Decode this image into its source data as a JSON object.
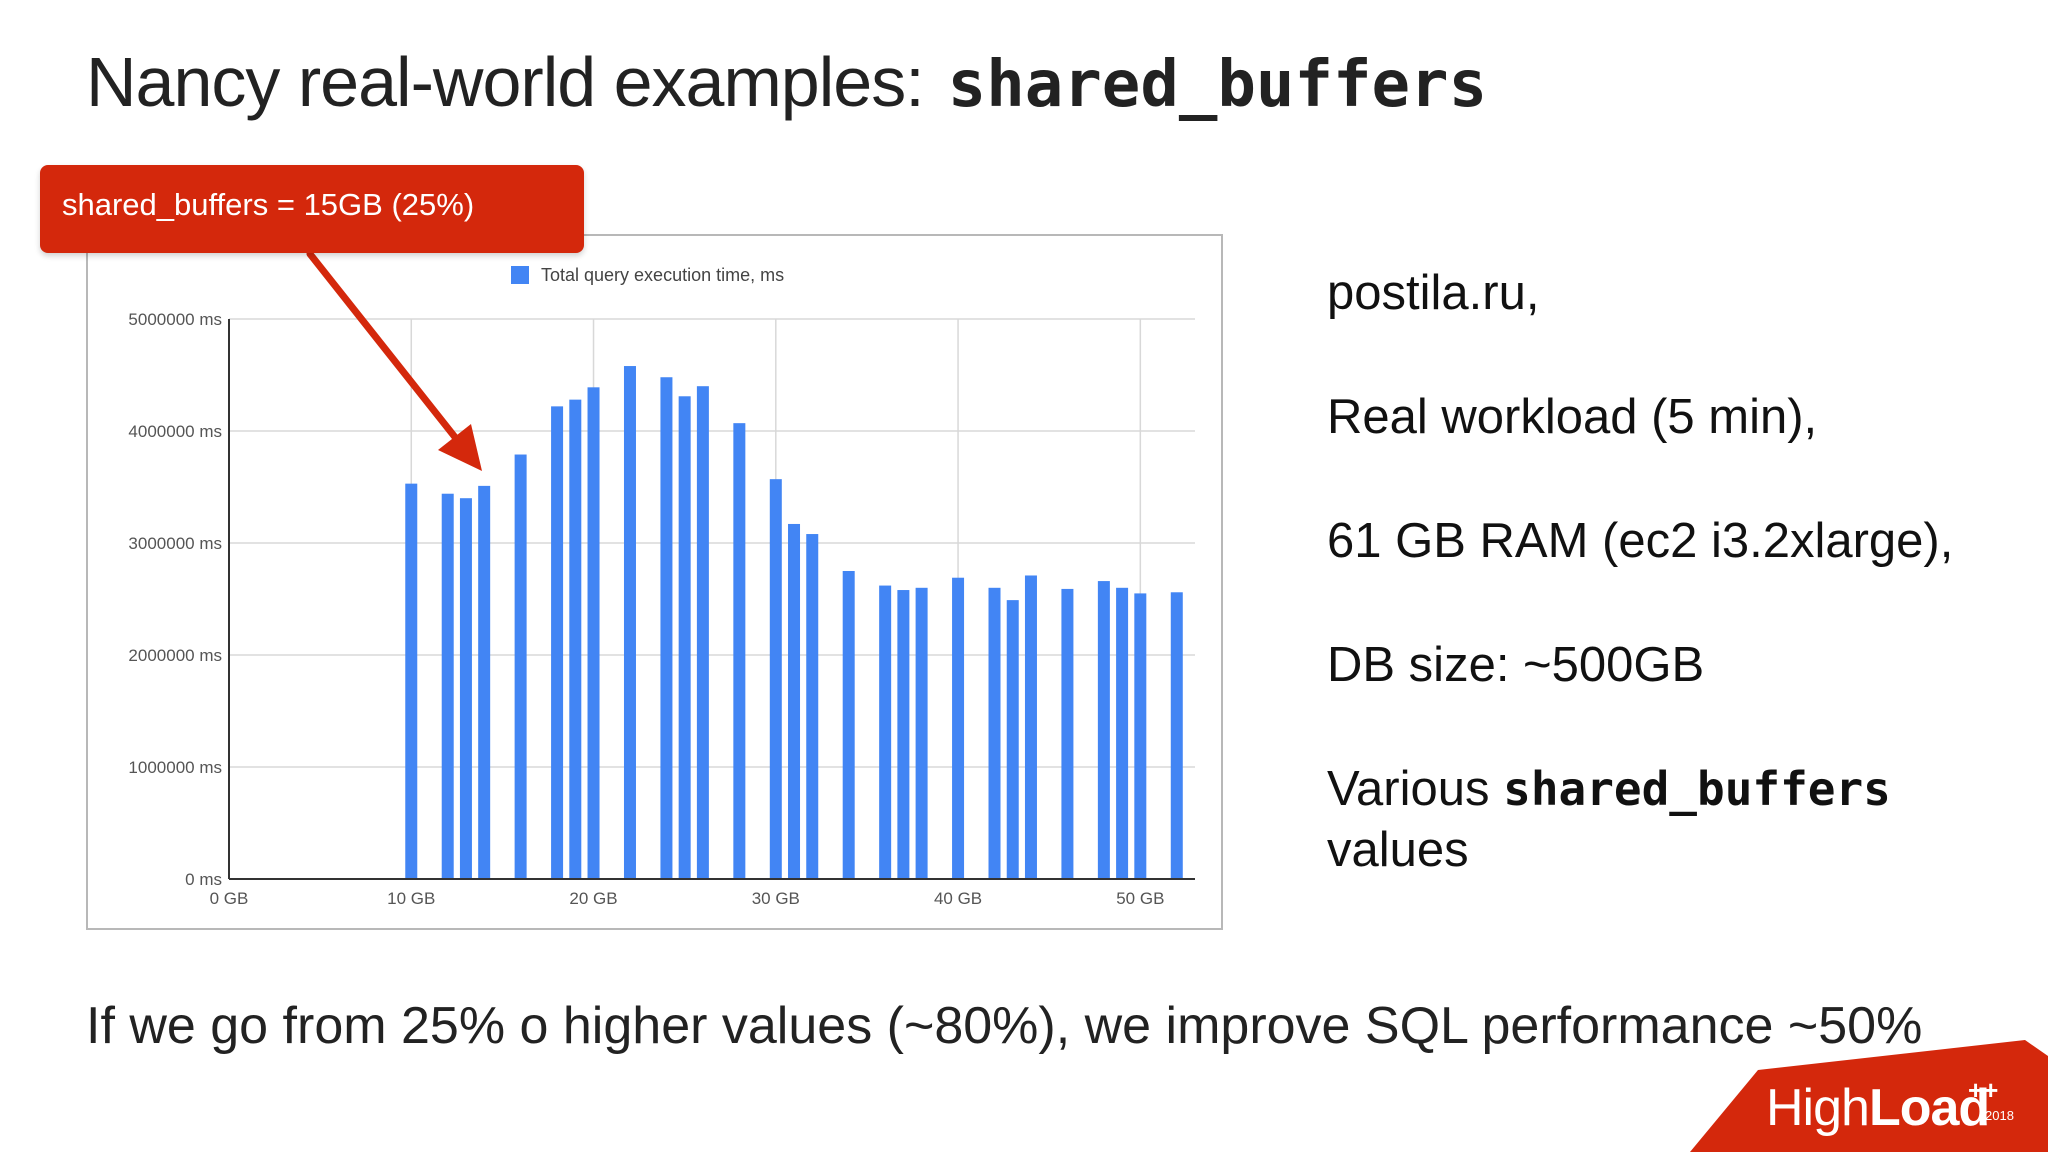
{
  "slide": {
    "title_text": "Nancy real-world examples:",
    "title_code": "shared_buffers",
    "callout": "shared_buffers = 15GB (25%)",
    "info_lines": [
      "postila.ru,",
      "Real workload (5 min),",
      "61 GB RAM (ec2 i3.2xlarge),",
      "DB size: ~500GB"
    ],
    "info_various_prefix": "Various",
    "info_various_code": "shared_buffers",
    "info_various_suffix": "values",
    "footer": "If we go from 25% o higher values (~80%), we improve SQL performance ~50%",
    "logo_light": "High",
    "logo_bold": "Load",
    "logo_sup": "++",
    "logo_year": "2018",
    "accent_color": "#d4280c",
    "bar_color": "#4285f4"
  },
  "chart_data": {
    "type": "bar",
    "legend": "Total query execution time, ms",
    "legend_position": "top",
    "grid": true,
    "xlim": [
      0,
      53
    ],
    "ylim": [
      0,
      5000000
    ],
    "x_ticks": [
      0,
      10,
      20,
      30,
      40,
      50
    ],
    "x_tick_labels": [
      "0 GB",
      "10 GB",
      "20 GB",
      "30 GB",
      "40 GB",
      "50 GB"
    ],
    "y_ticks": [
      0,
      1000000,
      2000000,
      3000000,
      4000000,
      5000000
    ],
    "y_tick_labels": [
      "0 ms",
      "1000000 ms",
      "2000000 ms",
      "3000000 ms",
      "4000000 ms",
      "5000000 ms"
    ],
    "x": [
      10,
      12,
      13,
      14,
      16,
      18,
      19,
      20,
      22,
      24,
      25,
      26,
      28,
      30,
      31,
      32,
      34,
      36,
      37,
      38,
      40,
      42,
      43,
      44,
      46,
      48,
      49,
      50,
      52
    ],
    "values": [
      3530000,
      3440000,
      3400000,
      3510000,
      3790000,
      4220000,
      4280000,
      4390000,
      4580000,
      4480000,
      4310000,
      4400000,
      4070000,
      3570000,
      3170000,
      3080000,
      2750000,
      2620000,
      2580000,
      2600000,
      2690000,
      2600000,
      2490000,
      2710000,
      2590000,
      2660000,
      2600000,
      2550000,
      2560000
    ]
  }
}
